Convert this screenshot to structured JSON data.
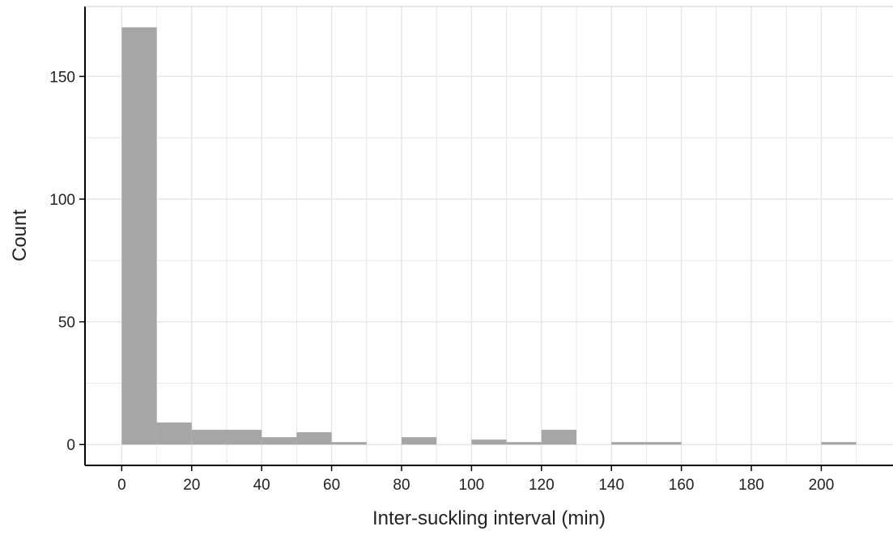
{
  "chart_data": {
    "type": "bar",
    "title": "",
    "xlabel": "Inter-suckling interval (min)",
    "ylabel": "Count",
    "bin_width": 10,
    "bins": [
      {
        "start": 0,
        "end": 10,
        "count": 170
      },
      {
        "start": 10,
        "end": 20,
        "count": 9
      },
      {
        "start": 20,
        "end": 30,
        "count": 6
      },
      {
        "start": 30,
        "end": 40,
        "count": 6
      },
      {
        "start": 40,
        "end": 50,
        "count": 3
      },
      {
        "start": 50,
        "end": 60,
        "count": 5
      },
      {
        "start": 60,
        "end": 70,
        "count": 1
      },
      {
        "start": 70,
        "end": 80,
        "count": 0
      },
      {
        "start": 80,
        "end": 90,
        "count": 3
      },
      {
        "start": 90,
        "end": 100,
        "count": 0
      },
      {
        "start": 100,
        "end": 110,
        "count": 2
      },
      {
        "start": 110,
        "end": 120,
        "count": 1
      },
      {
        "start": 120,
        "end": 130,
        "count": 6
      },
      {
        "start": 130,
        "end": 140,
        "count": 0
      },
      {
        "start": 140,
        "end": 150,
        "count": 1
      },
      {
        "start": 150,
        "end": 160,
        "count": 1
      },
      {
        "start": 160,
        "end": 170,
        "count": 0
      },
      {
        "start": 170,
        "end": 180,
        "count": 0
      },
      {
        "start": 180,
        "end": 190,
        "count": 0
      },
      {
        "start": 190,
        "end": 200,
        "count": 0
      },
      {
        "start": 200,
        "end": 210,
        "count": 1
      }
    ],
    "x_ticks": [
      0,
      20,
      40,
      60,
      80,
      100,
      120,
      140,
      160,
      180,
      200
    ],
    "y_ticks": [
      0,
      50,
      100,
      150
    ],
    "xlim": [
      -10.5,
      220.5
    ],
    "ylim": [
      -8.5,
      178.5
    ],
    "grid": true,
    "bar_color": "#a6a6a6",
    "grid_color": "#e6e6e6"
  }
}
